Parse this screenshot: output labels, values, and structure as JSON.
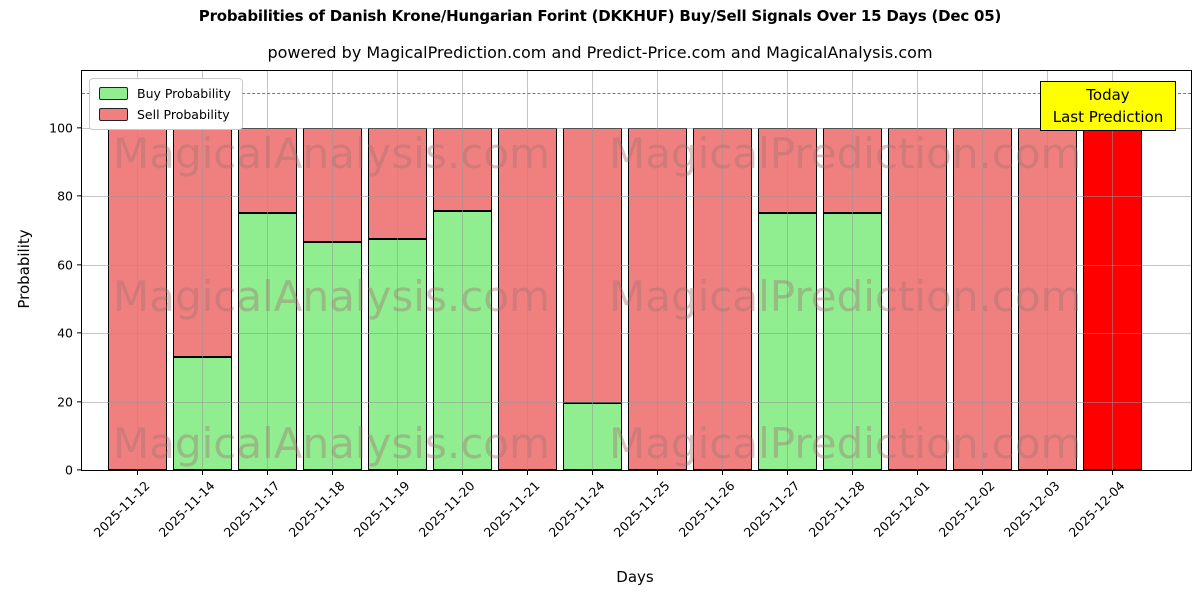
{
  "figure": {
    "title": "Probabilities of Danish Krone/Hungarian Forint (DKKHUF) Buy/Sell Signals Over 15 Days (Dec 05)",
    "subtitle": "powered by MagicalPrediction.com and Predict-Price.com and MagicalAnalysis.com"
  },
  "legend": {
    "items": [
      {
        "label": "Buy Probability",
        "color": "#90ee90"
      },
      {
        "label": "Sell Probability",
        "color": "#f08080"
      }
    ]
  },
  "annotation": {
    "line1": "Today",
    "line2": "Last Prediction",
    "bg_color": "#ffff00",
    "border_color": "#000000"
  },
  "watermark": {
    "left_text": "MagicalAnalysis.com",
    "right_text": "MagicalPrediction.com"
  },
  "chart_data": {
    "type": "bar",
    "stacked": true,
    "title": "Probabilities of Danish Krone/Hungarian Forint (DKKHUF) Buy/Sell Signals Over 15 Days (Dec 05)",
    "xlabel": "Days",
    "ylabel": "Probability",
    "categories": [
      "2025-11-12",
      "2025-11-14",
      "2025-11-17",
      "2025-11-18",
      "2025-11-19",
      "2025-11-20",
      "2025-11-21",
      "2025-11-24",
      "2025-11-25",
      "2025-11-26",
      "2025-11-27",
      "2025-11-28",
      "2025-12-01",
      "2025-12-02",
      "2025-12-03",
      "2025-12-04"
    ],
    "series": [
      {
        "name": "Buy Probability",
        "color": "#90ee90",
        "values": [
          0,
          33,
          75,
          66.5,
          67.5,
          75.5,
          0,
          19.5,
          0,
          0,
          75,
          75,
          0,
          0,
          0,
          0
        ]
      },
      {
        "name": "Sell Probability",
        "color": "#f08080",
        "values": [
          100,
          67,
          25,
          33.5,
          32.5,
          24.5,
          100,
          80.5,
          100,
          100,
          25,
          25,
          100,
          100,
          100,
          100
        ]
      }
    ],
    "highlight_last_bar": {
      "index": 15,
      "color": "#ff0000",
      "note": "Today / Last Prediction"
    },
    "yticks": [
      0,
      20,
      40,
      60,
      80,
      100
    ],
    "ylim": [
      0,
      116.5
    ],
    "dashed_line_y": 110,
    "grid": true,
    "legend_position": "upper left",
    "bar_edge_color": "#000000"
  }
}
